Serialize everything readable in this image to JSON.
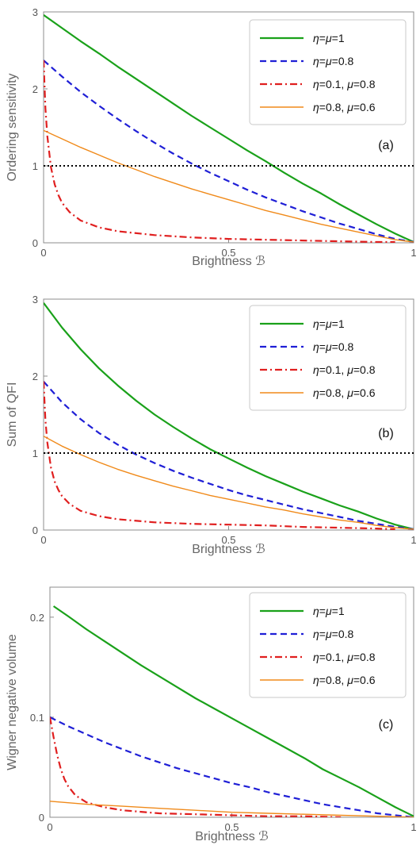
{
  "chart_data": [
    {
      "type": "line",
      "panel_label": "(a)",
      "xlabel": "Brightness ℬ",
      "ylabel": "Ordering sensitivity",
      "xlim": [
        0,
        1
      ],
      "ylim": [
        0,
        3
      ],
      "x_ticks": [
        {
          "value": 0,
          "label": "0"
        },
        {
          "value": 0.5,
          "label": "0.5"
        },
        {
          "value": 1,
          "label": "1"
        }
      ],
      "y_ticks": [
        {
          "value": 0,
          "label": "0"
        },
        {
          "value": 1,
          "label": "1"
        },
        {
          "value": 2,
          "label": "2"
        },
        {
          "value": 3,
          "label": "3"
        }
      ],
      "grid": false,
      "legend_position": "top-right",
      "reference_line": {
        "y": 1,
        "style": "dotted",
        "color": "#000000"
      },
      "series": [
        {
          "name": "η=μ=1",
          "color": "#1aa11a",
          "style": "solid",
          "width": 2.2,
          "x": [
            0,
            0.05,
            0.1,
            0.15,
            0.2,
            0.25,
            0.3,
            0.35,
            0.4,
            0.45,
            0.5,
            0.55,
            0.6,
            0.65,
            0.7,
            0.75,
            0.8,
            0.85,
            0.9,
            0.95,
            1
          ],
          "y": [
            2.96,
            2.79,
            2.62,
            2.46,
            2.29,
            2.13,
            1.97,
            1.81,
            1.65,
            1.5,
            1.35,
            1.2,
            1.06,
            0.91,
            0.77,
            0.64,
            0.5,
            0.37,
            0.24,
            0.12,
            0.01
          ]
        },
        {
          "name": "η=μ=0.8",
          "color": "#1f1fd6",
          "style": "dashed",
          "width": 2.2,
          "x": [
            0,
            0.05,
            0.1,
            0.15,
            0.2,
            0.25,
            0.3,
            0.35,
            0.4,
            0.45,
            0.5,
            0.55,
            0.6,
            0.65,
            0.7,
            0.75,
            0.8,
            0.85,
            0.9,
            0.95,
            1
          ],
          "y": [
            2.37,
            2.16,
            1.96,
            1.78,
            1.61,
            1.45,
            1.3,
            1.16,
            1.03,
            0.91,
            0.8,
            0.69,
            0.59,
            0.5,
            0.41,
            0.33,
            0.25,
            0.18,
            0.11,
            0.05,
            0.01
          ]
        },
        {
          "name": "η=0.1, μ=0.8",
          "color": "#e01f1f",
          "style": "dashdot",
          "width": 2.2,
          "x": [
            0,
            0.005,
            0.01,
            0.02,
            0.03,
            0.04,
            0.05,
            0.07,
            0.1,
            0.15,
            0.2,
            0.3,
            0.4,
            0.5,
            0.6,
            0.7,
            0.8,
            0.9,
            0.95
          ],
          "y": [
            2.37,
            1.75,
            1.39,
            0.98,
            0.76,
            0.62,
            0.52,
            0.4,
            0.29,
            0.2,
            0.15,
            0.1,
            0.07,
            0.05,
            0.04,
            0.03,
            0.02,
            0.01,
            0.01
          ]
        },
        {
          "name": "η=0.8, μ=0.6",
          "color": "#f08a1a",
          "style": "solid",
          "width": 1.4,
          "x": [
            0,
            0.05,
            0.1,
            0.15,
            0.2,
            0.25,
            0.3,
            0.35,
            0.4,
            0.45,
            0.5,
            0.55,
            0.6,
            0.65,
            0.7,
            0.75,
            0.8,
            0.85,
            0.9,
            0.95,
            1
          ],
          "y": [
            1.46,
            1.35,
            1.24,
            1.14,
            1.04,
            0.95,
            0.86,
            0.78,
            0.7,
            0.63,
            0.56,
            0.49,
            0.42,
            0.36,
            0.3,
            0.24,
            0.19,
            0.14,
            0.09,
            0.04,
            0.01
          ]
        }
      ]
    },
    {
      "type": "line",
      "panel_label": "(b)",
      "xlabel": "Brightness ℬ",
      "ylabel": "Sum of QFI",
      "xlim": [
        0,
        1
      ],
      "ylim": [
        0,
        3
      ],
      "x_ticks": [
        {
          "value": 0,
          "label": "0"
        },
        {
          "value": 0.5,
          "label": "0.5"
        },
        {
          "value": 1,
          "label": "1"
        }
      ],
      "y_ticks": [
        {
          "value": 0,
          "label": "0"
        },
        {
          "value": 1,
          "label": "1"
        },
        {
          "value": 2,
          "label": "2"
        },
        {
          "value": 3,
          "label": "3"
        }
      ],
      "grid": false,
      "legend_position": "top-right",
      "reference_line": {
        "y": 1,
        "style": "dotted",
        "color": "#000000"
      },
      "series": [
        {
          "name": "η=μ=1",
          "color": "#1aa11a",
          "style": "solid",
          "width": 2.2,
          "x": [
            0,
            0.05,
            0.1,
            0.15,
            0.2,
            0.25,
            0.3,
            0.35,
            0.4,
            0.45,
            0.5,
            0.55,
            0.6,
            0.65,
            0.7,
            0.75,
            0.8,
            0.85,
            0.9,
            0.95,
            1
          ],
          "y": [
            2.95,
            2.63,
            2.35,
            2.1,
            1.88,
            1.68,
            1.5,
            1.34,
            1.19,
            1.05,
            0.93,
            0.81,
            0.7,
            0.6,
            0.5,
            0.41,
            0.32,
            0.24,
            0.15,
            0.07,
            0.01
          ]
        },
        {
          "name": "η=μ=0.8",
          "color": "#1f1fd6",
          "style": "dashed",
          "width": 2.2,
          "x": [
            0,
            0.05,
            0.1,
            0.15,
            0.2,
            0.25,
            0.3,
            0.35,
            0.4,
            0.45,
            0.5,
            0.55,
            0.6,
            0.65,
            0.7,
            0.75,
            0.8,
            0.85,
            0.9,
            0.95,
            1
          ],
          "y": [
            1.93,
            1.66,
            1.44,
            1.26,
            1.11,
            0.98,
            0.87,
            0.77,
            0.68,
            0.6,
            0.52,
            0.45,
            0.39,
            0.33,
            0.27,
            0.22,
            0.17,
            0.12,
            0.08,
            0.04,
            0.01
          ]
        },
        {
          "name": "η=0.1, μ=0.8",
          "color": "#e01f1f",
          "style": "dashdot",
          "width": 2.2,
          "x": [
            0,
            0.005,
            0.01,
            0.02,
            0.03,
            0.04,
            0.05,
            0.07,
            0.1,
            0.15,
            0.2,
            0.3,
            0.4,
            0.5,
            0.6,
            0.7,
            0.8,
            0.9,
            0.95
          ],
          "y": [
            1.93,
            1.43,
            1.14,
            0.81,
            0.63,
            0.52,
            0.44,
            0.34,
            0.25,
            0.18,
            0.14,
            0.1,
            0.08,
            0.07,
            0.06,
            0.04,
            0.03,
            0.02,
            0.01
          ]
        },
        {
          "name": "η=0.8, μ=0.6",
          "color": "#f08a1a",
          "style": "solid",
          "width": 1.4,
          "x": [
            0,
            0.05,
            0.1,
            0.15,
            0.2,
            0.25,
            0.3,
            0.35,
            0.4,
            0.45,
            0.5,
            0.55,
            0.6,
            0.65,
            0.7,
            0.75,
            0.8,
            0.85,
            0.9,
            0.95,
            1
          ],
          "y": [
            1.22,
            1.09,
            0.98,
            0.88,
            0.79,
            0.71,
            0.64,
            0.57,
            0.51,
            0.45,
            0.4,
            0.35,
            0.3,
            0.26,
            0.21,
            0.17,
            0.13,
            0.1,
            0.06,
            0.03,
            0.01
          ]
        }
      ]
    },
    {
      "type": "line",
      "panel_label": "(c)",
      "xlabel": "Brightness ℬ",
      "ylabel": "Wigner negative volume",
      "xlim": [
        0,
        1
      ],
      "ylim": [
        0,
        0.23
      ],
      "x_ticks": [
        {
          "value": 0,
          "label": "0"
        },
        {
          "value": 0.5,
          "label": "0.5"
        },
        {
          "value": 1,
          "label": "1"
        }
      ],
      "y_ticks": [
        {
          "value": 0,
          "label": "0"
        },
        {
          "value": 0.1,
          "label": "0.1"
        },
        {
          "value": 0.2,
          "label": "0.2"
        }
      ],
      "grid": false,
      "legend_position": "top-right",
      "reference_line": null,
      "series": [
        {
          "name": "η=μ=1",
          "color": "#1aa11a",
          "style": "solid",
          "width": 2.2,
          "x": [
            0.01,
            0.05,
            0.1,
            0.15,
            0.2,
            0.25,
            0.3,
            0.35,
            0.4,
            0.45,
            0.5,
            0.55,
            0.6,
            0.65,
            0.7,
            0.75,
            0.8,
            0.85,
            0.9,
            0.95,
            1
          ],
          "y": [
            0.211,
            0.201,
            0.188,
            0.176,
            0.164,
            0.152,
            0.141,
            0.13,
            0.119,
            0.109,
            0.099,
            0.089,
            0.079,
            0.069,
            0.059,
            0.048,
            0.039,
            0.03,
            0.02,
            0.01,
            0.001
          ]
        },
        {
          "name": "η=μ=0.8",
          "color": "#1f1fd6",
          "style": "dashed",
          "width": 2.2,
          "x": [
            0,
            0.05,
            0.1,
            0.15,
            0.2,
            0.25,
            0.3,
            0.35,
            0.4,
            0.45,
            0.5,
            0.55,
            0.6,
            0.65,
            0.7,
            0.75,
            0.8,
            0.85,
            0.9,
            0.95,
            1
          ],
          "y": [
            0.1,
            0.091,
            0.083,
            0.075,
            0.068,
            0.061,
            0.055,
            0.049,
            0.044,
            0.039,
            0.034,
            0.03,
            0.025,
            0.021,
            0.017,
            0.013,
            0.01,
            0.007,
            0.004,
            0.002,
            0.0
          ]
        },
        {
          "name": "η=0.1, μ=0.8",
          "color": "#e01f1f",
          "style": "dashdot",
          "width": 2.2,
          "x": [
            0,
            0.005,
            0.01,
            0.02,
            0.03,
            0.04,
            0.05,
            0.07,
            0.1,
            0.15,
            0.2,
            0.3,
            0.4,
            0.5,
            0.6,
            0.7,
            0.8
          ],
          "y": [
            0.1,
            0.09,
            0.08,
            0.062,
            0.048,
            0.038,
            0.031,
            0.022,
            0.015,
            0.01,
            0.007,
            0.004,
            0.003,
            0.002,
            0.001,
            0.001,
            0.0
          ]
        },
        {
          "name": "η=0.8, μ=0.6",
          "color": "#f08a1a",
          "style": "solid",
          "width": 1.4,
          "x": [
            0,
            0.1,
            0.2,
            0.3,
            0.4,
            0.5,
            0.6,
            0.7,
            0.8,
            0.9,
            1
          ],
          "y": [
            0.016,
            0.013,
            0.011,
            0.009,
            0.007,
            0.005,
            0.004,
            0.003,
            0.002,
            0.001,
            0.0
          ]
        }
      ]
    }
  ]
}
